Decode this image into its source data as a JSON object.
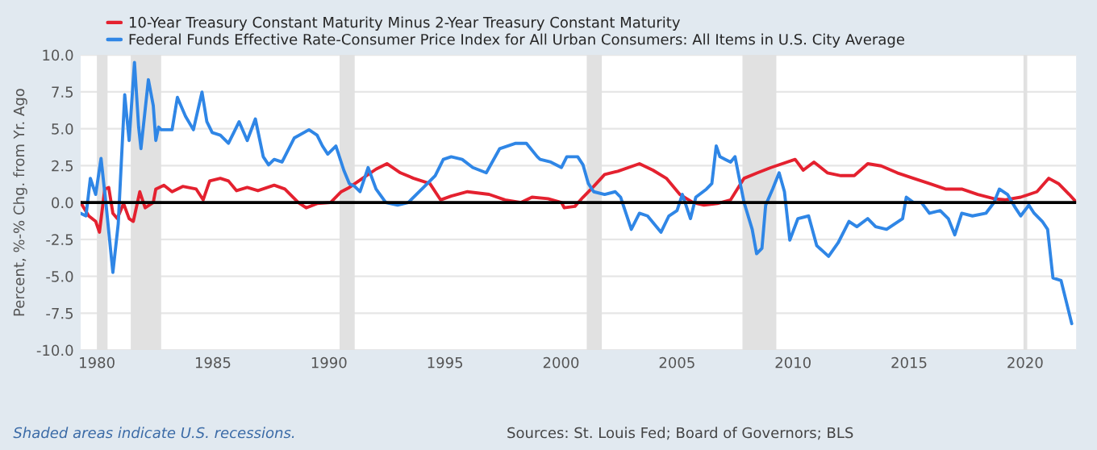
{
  "chart_data": [
    {
      "type": "line",
      "ylabel": "Percent, %-% Chg. from Yr. Ago",
      "legend": "top left",
      "grid": "y",
      "xlim": [
        1979.3,
        2022.2
      ],
      "ylim": [
        -10,
        10
      ],
      "xticks": [
        1980,
        1985,
        1990,
        1995,
        2000,
        2005,
        2010,
        2015,
        2020
      ],
      "yticks": [
        {
          "value": -10,
          "label": "-10.0"
        },
        {
          "value": -7.5,
          "label": "-7.5"
        },
        {
          "value": -5,
          "label": "-5.0"
        },
        {
          "value": -2.5,
          "label": "-2.5"
        },
        {
          "value": 0,
          "label": "0.0"
        },
        {
          "value": 2.5,
          "label": "2.5"
        },
        {
          "value": 5,
          "label": "5.0"
        },
        {
          "value": 7.5,
          "label": "7.5"
        },
        {
          "value": 10,
          "label": "10.0"
        }
      ],
      "ref_lines": [
        {
          "axis": "y",
          "value": 0,
          "color": "#000000"
        }
      ],
      "bands": [
        {
          "axis": "x",
          "from": 1980.0,
          "to": 1980.46,
          "color": "#e1e1e1"
        },
        {
          "axis": "x",
          "from": 1981.46,
          "to": 1982.77,
          "color": "#e1e1e1"
        },
        {
          "axis": "x",
          "from": 1990.46,
          "to": 1991.11,
          "color": "#e1e1e1"
        },
        {
          "axis": "x",
          "from": 2001.11,
          "to": 2001.76,
          "color": "#e1e1e1"
        },
        {
          "axis": "x",
          "from": 2007.82,
          "to": 2009.28,
          "color": "#e1e1e1"
        },
        {
          "axis": "x",
          "from": 2019.93,
          "to": 2020.09,
          "color": "#e1e1e1"
        }
      ],
      "annotations": [
        "Shaded areas indicate U.S. recessions.",
        "Sources: St. Louis Fed; Board of Governors; BLS"
      ],
      "series": [
        {
          "name": "10-Year Treasury Constant Maturity Minus 2-Year Treasury Constant Maturity",
          "color": "#e4212f",
          "x": [
            1979.3,
            1979.65,
            1979.95,
            1980.11,
            1980.34,
            1980.51,
            1980.69,
            1980.88,
            1981.15,
            1981.39,
            1981.57,
            1981.85,
            1982.08,
            1982.43,
            1982.54,
            1982.89,
            1983.24,
            1983.7,
            1984.28,
            1984.58,
            1984.86,
            1985.32,
            1985.67,
            1986.02,
            1986.48,
            1986.94,
            1987.64,
            1988.1,
            1988.68,
            1989.02,
            1989.49,
            1990.07,
            1990.53,
            1990.88,
            1991.45,
            1992.03,
            1992.5,
            1993.08,
            1993.65,
            1994.35,
            1994.81,
            1995.27,
            1995.97,
            1996.9,
            1997.59,
            1998.28,
            1998.75,
            1999.44,
            2000.02,
            2000.14,
            2000.6,
            2000.95,
            2001.41,
            2001.88,
            2002.45,
            2003.38,
            2003.96,
            2004.54,
            2005.12,
            2005.69,
            2006.16,
            2006.74,
            2007.31,
            2007.89,
            2008.47,
            2009.05,
            2010.09,
            2010.44,
            2010.9,
            2011.48,
            2012.06,
            2012.64,
            2013.22,
            2013.8,
            2014.49,
            2015.19,
            2015.88,
            2016.57,
            2017.27,
            2017.96,
            2018.66,
            2019.12,
            2019.81,
            2020.51,
            2021.02,
            2021.44,
            2021.9,
            2022.18
          ],
          "values": [
            0.0,
            -0.91,
            -1.28,
            -2.01,
            0.91,
            1.02,
            -0.73,
            -1.09,
            -0.07,
            -1.09,
            -1.28,
            0.73,
            -0.36,
            0.0,
            0.91,
            1.17,
            0.73,
            1.09,
            0.91,
            0.18,
            1.46,
            1.64,
            1.46,
            0.8,
            1.02,
            0.8,
            1.17,
            0.91,
            0.0,
            -0.36,
            -0.07,
            0.0,
            0.73,
            1.02,
            1.64,
            2.26,
            2.63,
            2.01,
            1.64,
            1.28,
            0.18,
            0.44,
            0.73,
            0.55,
            0.18,
            0.0,
            0.36,
            0.26,
            0.0,
            -0.36,
            -0.26,
            0.36,
            1.09,
            1.9,
            2.12,
            2.63,
            2.19,
            1.64,
            0.55,
            0.0,
            -0.18,
            -0.07,
            0.18,
            1.64,
            2.01,
            2.37,
            2.92,
            2.19,
            2.74,
            2.01,
            1.82,
            1.82,
            2.63,
            2.48,
            2.01,
            1.64,
            1.28,
            0.91,
            0.91,
            0.55,
            0.26,
            0.18,
            0.36,
            0.73,
            1.64,
            1.28,
            0.55,
            0.07
          ]
        },
        {
          "name": "Federal Funds Effective Rate-Consumer Price Index for All Urban Consumers: All Items in U.S. City Average",
          "color": "#2f86e6",
          "x": [
            1979.3,
            1979.53,
            1979.72,
            1979.95,
            1980.18,
            1980.41,
            1980.69,
            1980.92,
            1981.2,
            1981.39,
            1981.62,
            1981.8,
            1981.9,
            1982.22,
            1982.43,
            1982.54,
            1982.66,
            1982.77,
            1983.24,
            1983.47,
            1983.82,
            1984.16,
            1984.53,
            1984.74,
            1984.97,
            1985.32,
            1985.67,
            1985.9,
            1986.13,
            1986.48,
            1986.83,
            1987.17,
            1987.4,
            1987.64,
            1987.98,
            1988.51,
            1989.14,
            1989.49,
            1989.72,
            1989.95,
            1990.3,
            1990.64,
            1990.88,
            1991.11,
            1991.34,
            1991.69,
            1992.03,
            1992.45,
            1992.96,
            1993.42,
            1994.12,
            1994.58,
            1994.93,
            1995.27,
            1995.74,
            1996.2,
            1996.78,
            1997.36,
            1998.05,
            1998.51,
            1998.98,
            1999.1,
            1999.56,
            2000.02,
            2000.25,
            2000.72,
            2000.95,
            2001.18,
            2001.41,
            2001.88,
            2002.34,
            2002.57,
            2003.03,
            2003.38,
            2003.73,
            2004.31,
            2004.65,
            2005.0,
            2005.23,
            2005.58,
            2005.81,
            2006.27,
            2006.5,
            2006.69,
            2006.85,
            2007.08,
            2007.31,
            2007.5,
            2007.66,
            2007.89,
            2008.24,
            2008.43,
            2008.66,
            2008.82,
            2009.12,
            2009.4,
            2009.63,
            2009.86,
            2010.21,
            2010.67,
            2011.02,
            2011.53,
            2011.94,
            2012.41,
            2012.75,
            2013.22,
            2013.56,
            2014.03,
            2014.72,
            2014.88,
            2015.19,
            2015.53,
            2015.88,
            2016.34,
            2016.69,
            2016.97,
            2017.27,
            2017.73,
            2018.31,
            2018.66,
            2018.89,
            2019.24,
            2019.58,
            2019.81,
            2020.16,
            2020.39,
            2020.74,
            2020.97,
            2021.2,
            2021.55,
            2021.78,
            2022.01
          ],
          "values": [
            -0.73,
            -0.91,
            1.64,
            0.55,
            2.99,
            -0.36,
            -4.74,
            -1.46,
            7.3,
            4.2,
            9.49,
            5.11,
            3.65,
            8.32,
            6.57,
            4.2,
            5.11,
            4.93,
            4.93,
            7.12,
            5.84,
            4.93,
            7.48,
            5.47,
            4.74,
            4.56,
            4.01,
            4.74,
            5.47,
            4.2,
            5.66,
            3.1,
            2.55,
            2.92,
            2.74,
            4.38,
            4.93,
            4.56,
            3.83,
            3.28,
            3.83,
            2.19,
            1.28,
            1.09,
            0.73,
            2.37,
            0.91,
            0.0,
            -0.18,
            0.0,
            1.09,
            1.82,
            2.92,
            3.1,
            2.92,
            2.37,
            2.01,
            3.65,
            4.01,
            4.01,
            3.1,
            2.92,
            2.74,
            2.37,
            3.1,
            3.1,
            2.55,
            1.28,
            0.73,
            0.55,
            0.73,
            0.36,
            -1.82,
            -0.73,
            -0.91,
            -2.01,
            -0.91,
            -0.55,
            0.55,
            -1.09,
            0.36,
            0.91,
            1.28,
            3.83,
            3.1,
            2.92,
            2.74,
            3.1,
            1.82,
            0.0,
            -1.82,
            -3.47,
            -3.1,
            -0.18,
            0.91,
            2.01,
            0.73,
            -2.55,
            -1.09,
            -0.91,
            -2.92,
            -3.65,
            -2.74,
            -1.28,
            -1.64,
            -1.09,
            -1.64,
            -1.82,
            -1.09,
            0.36,
            0.0,
            0.0,
            -0.73,
            -0.55,
            -1.09,
            -2.19,
            -0.73,
            -0.91,
            -0.73,
            0.0,
            0.91,
            0.55,
            -0.36,
            -0.91,
            -0.18,
            -0.73,
            -1.28,
            -1.82,
            -5.11,
            -5.29,
            -6.75,
            -8.21
          ]
        }
      ]
    }
  ]
}
